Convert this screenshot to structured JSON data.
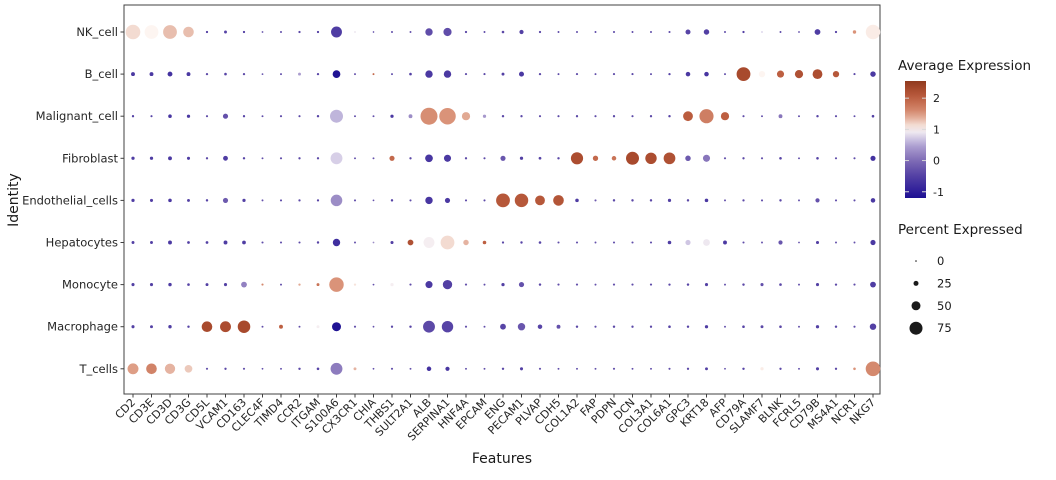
{
  "chart_data": {
    "type": "scatter",
    "subtype": "dot-plot",
    "title": "",
    "xlabel": "Features",
    "ylabel": "Identity",
    "features": [
      "CD2",
      "CD3E",
      "CD3D",
      "CD3G",
      "CD5L",
      "VCAM1",
      "CD163",
      "CLEC4F",
      "TIMD4",
      "CCR2",
      "ITGAM",
      "S100A6",
      "CX3CR1",
      "CHIA",
      "THBS1",
      "SULT2A1",
      "ALB",
      "SERPINA1",
      "HNF4A",
      "EPCAM",
      "ENG",
      "PECAM1",
      "PLVAP",
      "CDH5",
      "COL1A2",
      "FAP",
      "PDPN",
      "DCN",
      "COL3A1",
      "COL6A1",
      "GPC3",
      "KRT18",
      "AFP",
      "CD79A",
      "SLAMF7",
      "BLNK",
      "FCRL5",
      "CD79B",
      "MS4A1",
      "NCR1",
      "NKG7"
    ],
    "identities": [
      "NK_cell",
      "B_cell",
      "Malignant_cell",
      "Fibroblast",
      "Endothelial_cells",
      "Hepatocytes",
      "Monocyte",
      "Macrophage",
      "T_cells"
    ],
    "series": [
      {
        "identity": "NK_cell",
        "percent": [
          85,
          80,
          80,
          60,
          8,
          12,
          8,
          5,
          6,
          8,
          8,
          62,
          6,
          4,
          6,
          6,
          40,
          45,
          8,
          6,
          10,
          20,
          8,
          6,
          6,
          6,
          7,
          6,
          6,
          7,
          25,
          28,
          6,
          8,
          6,
          6,
          5,
          30,
          8,
          15,
          84
        ],
        "expression": [
          1.15,
          1.0,
          1.3,
          1.3,
          -0.5,
          -0.45,
          -0.5,
          -0.3,
          -0.4,
          -0.4,
          -0.5,
          -0.55,
          0.9,
          -0.3,
          -0.4,
          -0.3,
          -0.35,
          -0.35,
          -0.4,
          -0.4,
          -0.4,
          -0.5,
          -0.4,
          -0.4,
          -0.4,
          -0.4,
          -0.4,
          -0.4,
          -0.4,
          -0.4,
          -0.45,
          -0.5,
          -0.4,
          -0.5,
          0.8,
          -0.4,
          -0.4,
          -0.55,
          -0.45,
          1.5,
          1.05
        ]
      },
      {
        "identity": "B_cell",
        "percent": [
          18,
          18,
          24,
          18,
          8,
          10,
          8,
          5,
          6,
          12,
          8,
          42,
          6,
          6,
          6,
          10,
          40,
          40,
          7,
          7,
          12,
          25,
          8,
          6,
          7,
          6,
          7,
          7,
          6,
          8,
          22,
          22,
          6,
          80,
          33,
          38,
          45,
          55,
          33,
          7,
          28
        ],
        "expression": [
          -0.6,
          -0.6,
          -0.7,
          -0.6,
          -0.4,
          -0.45,
          -0.4,
          -0.3,
          -0.35,
          0.45,
          -0.45,
          -1.15,
          -0.3,
          1.9,
          -0.35,
          -0.5,
          -0.6,
          -0.6,
          -0.4,
          -0.4,
          -0.5,
          -0.6,
          -0.4,
          -0.4,
          -0.4,
          -0.35,
          -0.4,
          -0.4,
          -0.4,
          -0.45,
          -0.6,
          -0.65,
          -0.35,
          2.3,
          1.0,
          2.0,
          2.2,
          2.25,
          2.1,
          -0.4,
          -0.6
        ]
      },
      {
        "identity": "Malignant_cell",
        "percent": [
          8,
          7,
          16,
          14,
          7,
          26,
          8,
          6,
          7,
          7,
          9,
          75,
          6,
          6,
          14,
          18,
          100,
          97,
          45,
          14,
          9,
          8,
          7,
          7,
          8,
          7,
          8,
          7,
          8,
          9,
          55,
          82,
          45,
          7,
          6,
          18,
          6,
          9,
          7,
          6,
          10
        ],
        "expression": [
          -0.5,
          -0.45,
          -0.65,
          -0.6,
          -0.4,
          -0.3,
          -0.45,
          -0.35,
          -0.4,
          -0.4,
          -0.45,
          0.6,
          -0.35,
          -0.3,
          -0.6,
          0.3,
          1.55,
          1.5,
          1.4,
          0.4,
          -0.4,
          -0.4,
          -0.4,
          -0.4,
          -0.4,
          -0.35,
          -0.4,
          -0.4,
          -0.4,
          -0.45,
          2.05,
          1.7,
          2.0,
          -0.35,
          -0.3,
          0.1,
          -0.35,
          -0.45,
          -0.4,
          -0.35,
          -0.5
        ]
      },
      {
        "identity": "Fibroblast",
        "percent": [
          14,
          14,
          18,
          13,
          8,
          24,
          9,
          6,
          7,
          8,
          8,
          68,
          6,
          6,
          26,
          8,
          42,
          38,
          8,
          7,
          26,
          14,
          11,
          9,
          70,
          27,
          22,
          75,
          65,
          67,
          28,
          38,
          7,
          8,
          7,
          10,
          6,
          10,
          7,
          7,
          26
        ],
        "expression": [
          -0.55,
          -0.55,
          -0.6,
          -0.55,
          -0.4,
          -0.55,
          -0.45,
          -0.35,
          -0.4,
          -0.4,
          -0.4,
          0.75,
          -0.35,
          -0.3,
          1.9,
          -0.4,
          -0.65,
          -0.6,
          -0.4,
          -0.4,
          -0.25,
          -0.5,
          -0.45,
          -0.4,
          2.25,
          1.9,
          1.8,
          2.3,
          2.25,
          2.2,
          -0.2,
          0.1,
          -0.35,
          -0.4,
          -0.35,
          -0.45,
          -0.35,
          -0.45,
          -0.4,
          -0.35,
          -0.7
        ]
      },
      {
        "identity": "Endothelial_cells",
        "percent": [
          14,
          13,
          16,
          12,
          9,
          26,
          14,
          6,
          7,
          8,
          8,
          66,
          7,
          5,
          9,
          7,
          40,
          26,
          7,
          7,
          80,
          78,
          55,
          60,
          16,
          7,
          9,
          9,
          9,
          14,
          9,
          16,
          6,
          8,
          7,
          9,
          6,
          20,
          7,
          7,
          22
        ],
        "expression": [
          -0.55,
          -0.5,
          -0.6,
          -0.5,
          -0.45,
          -0.2,
          -0.5,
          -0.3,
          -0.4,
          -0.4,
          -0.45,
          0.3,
          -0.35,
          -0.3,
          -0.45,
          -0.35,
          -0.65,
          -0.6,
          -0.4,
          -0.4,
          2.1,
          2.1,
          2.1,
          2.15,
          -0.55,
          -0.2,
          -0.4,
          -0.4,
          -0.4,
          -0.5,
          -0.4,
          -0.6,
          -0.35,
          -0.4,
          -0.35,
          -0.4,
          -0.3,
          -0.3,
          -0.35,
          -0.35,
          -0.6
        ]
      },
      {
        "identity": "Hepatocytes",
        "percent": [
          12,
          12,
          18,
          11,
          11,
          18,
          17,
          7,
          7,
          7,
          9,
          40,
          6,
          5,
          13,
          30,
          62,
          80,
          28,
          16,
          8,
          9,
          10,
          7,
          7,
          6,
          7,
          7,
          7,
          16,
          26,
          36,
          18,
          7,
          6,
          20,
          5,
          13,
          6,
          6,
          26
        ],
        "expression": [
          -0.5,
          -0.5,
          -0.6,
          -0.5,
          -0.5,
          -0.55,
          -0.55,
          -0.35,
          -0.35,
          -0.4,
          -0.45,
          -0.75,
          -0.35,
          0.3,
          -0.5,
          2.2,
          0.95,
          1.15,
          1.35,
          2.0,
          -0.4,
          -0.45,
          -0.45,
          -0.35,
          -0.35,
          -0.3,
          -0.35,
          -0.35,
          -0.4,
          -0.55,
          0.7,
          0.9,
          -0.6,
          -0.35,
          -0.3,
          -0.25,
          -0.3,
          -0.5,
          -0.35,
          -0.3,
          -0.6
        ]
      },
      {
        "identity": "Monocyte",
        "percent": [
          13,
          13,
          15,
          10,
          12,
          13,
          30,
          7,
          6,
          8,
          12,
          84,
          8,
          5,
          14,
          7,
          38,
          52,
          7,
          6,
          14,
          26,
          9,
          7,
          7,
          6,
          7,
          7,
          7,
          8,
          9,
          13,
          6,
          9,
          13,
          10,
          6,
          13,
          8,
          7,
          30
        ],
        "expression": [
          -0.5,
          -0.5,
          -0.55,
          -0.45,
          -0.5,
          -0.5,
          0.2,
          1.6,
          -0.35,
          1.4,
          1.8,
          1.5,
          1.1,
          -0.3,
          0.95,
          -0.35,
          -0.6,
          -0.5,
          -0.35,
          -0.35,
          -0.5,
          -0.3,
          -0.4,
          -0.35,
          -0.35,
          -0.3,
          -0.35,
          -0.35,
          -0.4,
          -0.4,
          -0.45,
          -0.5,
          -0.3,
          -0.4,
          -0.3,
          -0.4,
          -0.3,
          -0.5,
          -0.4,
          -0.35,
          -0.55
        ]
      },
      {
        "identity": "Macrophage",
        "percent": [
          13,
          12,
          15,
          9,
          60,
          62,
          72,
          6,
          18,
          6,
          12,
          50,
          7,
          5,
          8,
          9,
          68,
          65,
          7,
          6,
          30,
          40,
          22,
          18,
          9,
          7,
          9,
          8,
          8,
          10,
          9,
          14,
          6,
          10,
          12,
          10,
          6,
          14,
          9,
          7,
          34
        ],
        "expression": [
          -0.5,
          -0.5,
          -0.55,
          -0.45,
          2.3,
          2.25,
          2.3,
          -0.35,
          2.0,
          -0.35,
          0.95,
          -1.15,
          -0.35,
          -0.3,
          -0.4,
          -0.45,
          -0.4,
          -0.45,
          -0.35,
          -0.35,
          -0.45,
          -0.25,
          -0.45,
          -0.3,
          -0.4,
          -0.35,
          -0.4,
          -0.4,
          -0.4,
          -0.45,
          -0.45,
          -0.55,
          -0.3,
          -0.45,
          -0.4,
          -0.4,
          -0.3,
          -0.5,
          -0.4,
          -0.35,
          -0.5
        ]
      },
      {
        "identity": "T_cells",
        "percent": [
          62,
          60,
          58,
          42,
          7,
          8,
          7,
          5,
          6,
          9,
          10,
          68,
          12,
          5,
          7,
          6,
          22,
          20,
          6,
          6,
          9,
          13,
          7,
          6,
          6,
          6,
          7,
          6,
          6,
          7,
          8,
          12,
          5,
          9,
          14,
          8,
          6,
          13,
          8,
          10,
          85
        ],
        "expression": [
          1.45,
          1.65,
          1.35,
          1.25,
          -0.35,
          -0.4,
          -0.35,
          -0.3,
          -0.3,
          -0.4,
          -0.45,
          0.15,
          1.35,
          -0.3,
          -0.35,
          -0.3,
          -0.7,
          -0.65,
          -0.35,
          -0.35,
          -0.4,
          -0.5,
          -0.35,
          -0.35,
          -0.35,
          -0.3,
          -0.35,
          -0.35,
          -0.35,
          -0.35,
          -0.4,
          -0.5,
          -0.3,
          -0.45,
          1.05,
          -0.4,
          -0.3,
          -0.5,
          -0.4,
          1.5,
          1.6
        ]
      }
    ],
    "color_legend": {
      "title": "Average Expression",
      "ticks": [
        2,
        1,
        0,
        -1
      ],
      "domain": [
        -1.2,
        2.55
      ],
      "gradient_anchors": [
        {
          "v": -1.2,
          "c": "#1c1092"
        },
        {
          "v": -1.0,
          "c": "#2d1d99"
        },
        {
          "v": -0.5,
          "c": "#5340a4"
        },
        {
          "v": 0.0,
          "c": "#7e6bb5"
        },
        {
          "v": 0.5,
          "c": "#b0a3d2"
        },
        {
          "v": 0.85,
          "c": "#e6e1f0"
        },
        {
          "v": 1.0,
          "c": "#fdf5f1"
        },
        {
          "v": 1.25,
          "c": "#ecc9bb"
        },
        {
          "v": 1.5,
          "c": "#da9379"
        },
        {
          "v": 2.0,
          "c": "#bd5f41"
        },
        {
          "v": 2.3,
          "c": "#a84a2d"
        },
        {
          "v": 2.55,
          "c": "#8f3a1e"
        }
      ]
    },
    "size_legend": {
      "title": "Percent Expressed",
      "ticks": [
        0,
        25,
        50,
        75
      ]
    },
    "layout_hints": {
      "grid": false,
      "legend_position": "right",
      "x_tick_angle": 45
    }
  },
  "colors": {
    "panel_border": "#404040",
    "tick_text": "#262626",
    "axis_text": "#1a1a1a",
    "legend_dot": "#1a1a1a",
    "colorbar_tick": "#d8d8d8"
  }
}
